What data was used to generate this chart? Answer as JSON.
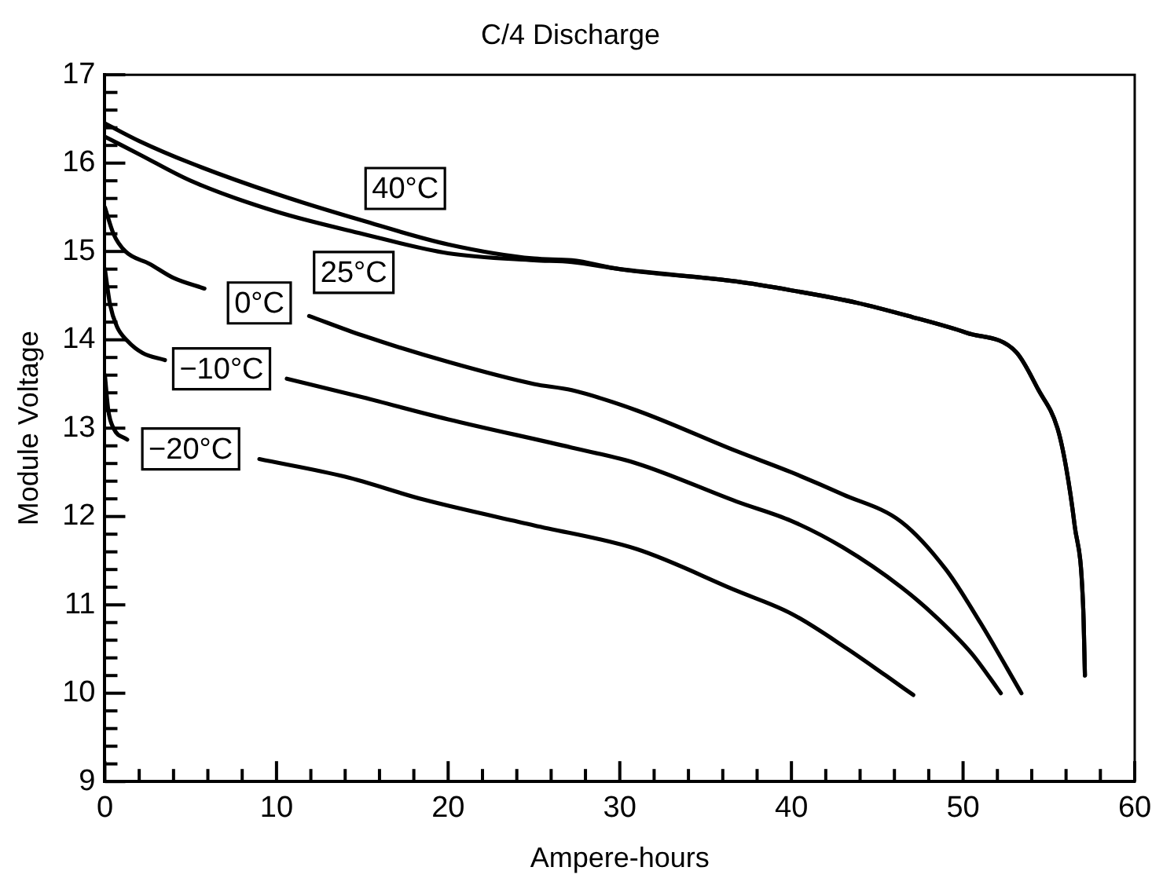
{
  "chart_data": {
    "type": "line",
    "title": "C/4 Discharge",
    "xlabel": "Ampere-hours",
    "ylabel": "Module Voltage",
    "series": [
      {
        "name": "40°C",
        "color": "#000000",
        "x": [
          0,
          2,
          5,
          10,
          15,
          20,
          25,
          27.2,
          30,
          36.8,
          40,
          43.8,
          47,
          50.2,
          53.1,
          54.4,
          55.5,
          56,
          56.5,
          57,
          57.1
        ],
        "values": [
          16.45,
          16.25,
          16.0,
          15.65,
          15.35,
          15.08,
          14.92,
          14.9,
          14.8,
          14.66,
          14.56,
          14.42,
          14.26,
          14.08,
          13.86,
          13.43,
          13.0,
          12.56,
          11.9,
          10.96,
          10.2
        ]
      },
      {
        "name": "25°C",
        "color": "#000000",
        "x": [
          0,
          2,
          5,
          10,
          15,
          20,
          25,
          27.2,
          30,
          36.8,
          40,
          43.8,
          47,
          50.2,
          53.1,
          54.4,
          55.5,
          56,
          56.5,
          57,
          57.1
        ],
        "values": [
          16.3,
          16.1,
          15.8,
          15.45,
          15.2,
          14.98,
          14.9,
          14.88,
          14.8,
          14.66,
          14.56,
          14.42,
          14.26,
          14.08,
          13.86,
          13.43,
          13.0,
          12.56,
          11.9,
          10.96,
          10.2
        ]
      },
      {
        "name": "0°C",
        "color": "#000000",
        "x": [
          0,
          0.5,
          1.2,
          2.6,
          4,
          5.8,
          8,
          11.9,
          15,
          20,
          25,
          27.2,
          31,
          36.8,
          40,
          43,
          46.4,
          49,
          51,
          53.4
        ],
        "values": [
          15.5,
          15.2,
          15.0,
          14.86,
          14.7,
          14.58,
          null,
          14.27,
          14.05,
          13.75,
          13.5,
          13.43,
          13.2,
          12.74,
          12.5,
          12.25,
          11.94,
          11.4,
          10.8,
          10.0
        ]
      },
      {
        "name": "−10°C",
        "color": "#000000",
        "x": [
          0,
          0.3,
          0.7,
          1.3,
          2.2,
          3.5,
          6,
          10.6,
          15,
          20,
          27.2,
          31,
          36.8,
          40,
          43,
          46.4,
          48.5,
          50.5,
          52.2
        ],
        "values": [
          14.8,
          14.4,
          14.15,
          13.99,
          13.85,
          13.77,
          null,
          13.56,
          13.35,
          13.1,
          12.78,
          12.6,
          12.17,
          11.95,
          11.65,
          11.2,
          10.85,
          10.45,
          10.0
        ]
      },
      {
        "name": "−20°C",
        "color": "#000000",
        "x": [
          0,
          0.2,
          0.5,
          1.3,
          3,
          5,
          9,
          14,
          18.6,
          25,
          31,
          36.8,
          40,
          43.2,
          45.5,
          47.1
        ],
        "values": [
          13.6,
          13.2,
          13.0,
          12.87,
          null,
          null,
          12.65,
          12.45,
          12.19,
          11.9,
          11.63,
          11.16,
          10.9,
          10.51,
          10.2,
          9.98
        ]
      }
    ],
    "xlim": [
      0,
      60
    ],
    "ylim": [
      9,
      17
    ],
    "xticks": [
      0,
      {
        "value": 2,
        "label": null
      },
      {
        "value": 4,
        "label": null
      },
      {
        "value": 6,
        "label": null
      },
      {
        "value": 8,
        "label": null
      },
      10,
      {
        "value": 12,
        "label": null
      },
      {
        "value": 14,
        "label": null
      },
      {
        "value": 16,
        "label": null
      },
      {
        "value": 18,
        "label": null
      },
      20,
      {
        "value": 22,
        "label": null
      },
      {
        "value": 24,
        "label": null
      },
      {
        "value": 26,
        "label": null
      },
      {
        "value": 28,
        "label": null
      },
      30,
      {
        "value": 32,
        "label": null
      },
      {
        "value": 34,
        "label": null
      },
      {
        "value": 36,
        "label": null
      },
      {
        "value": 38,
        "label": null
      },
      40,
      {
        "value": 42,
        "label": null
      },
      {
        "value": 44,
        "label": null
      },
      {
        "value": 46,
        "label": null
      },
      {
        "value": 48,
        "label": null
      },
      50,
      {
        "value": 52,
        "label": null
      },
      {
        "value": 54,
        "label": null
      },
      {
        "value": 56,
        "label": null
      },
      {
        "value": 58,
        "label": null
      },
      60
    ],
    "yticks": [
      9,
      {
        "value": 9.2,
        "label": null
      },
      {
        "value": 9.4,
        "label": null
      },
      {
        "value": 9.6,
        "label": null
      },
      {
        "value": 9.8,
        "label": null
      },
      10,
      {
        "value": 10.2,
        "label": null
      },
      {
        "value": 10.4,
        "label": null
      },
      {
        "value": 10.6,
        "label": null
      },
      {
        "value": 10.8,
        "label": null
      },
      11,
      {
        "value": 11.2,
        "label": null
      },
      {
        "value": 11.4,
        "label": null
      },
      {
        "value": 11.6,
        "label": null
      },
      {
        "value": 11.8,
        "label": null
      },
      12,
      {
        "value": 12.2,
        "label": null
      },
      {
        "value": 12.4,
        "label": null
      },
      {
        "value": 12.6,
        "label": null
      },
      {
        "value": 12.8,
        "label": null
      },
      13,
      {
        "value": 13.2,
        "label": null
      },
      {
        "value": 13.4,
        "label": null
      },
      {
        "value": 13.6,
        "label": null
      },
      {
        "value": 13.8,
        "label": null
      },
      14,
      {
        "value": 14.2,
        "label": null
      },
      {
        "value": 14.4,
        "label": null
      },
      {
        "value": 14.6,
        "label": null
      },
      {
        "value": 14.8,
        "label": null
      },
      15,
      {
        "value": 15.2,
        "label": null
      },
      {
        "value": 15.4,
        "label": null
      },
      {
        "value": 15.6,
        "label": null
      },
      {
        "value": 15.8,
        "label": null
      },
      16,
      {
        "value": 16.2,
        "label": null
      },
      {
        "value": 16.4,
        "label": null
      },
      {
        "value": 16.6,
        "label": null
      },
      {
        "value": 16.8,
        "label": null
      },
      17
    ],
    "grid": false,
    "marker": "none",
    "line_style": "solid"
  }
}
